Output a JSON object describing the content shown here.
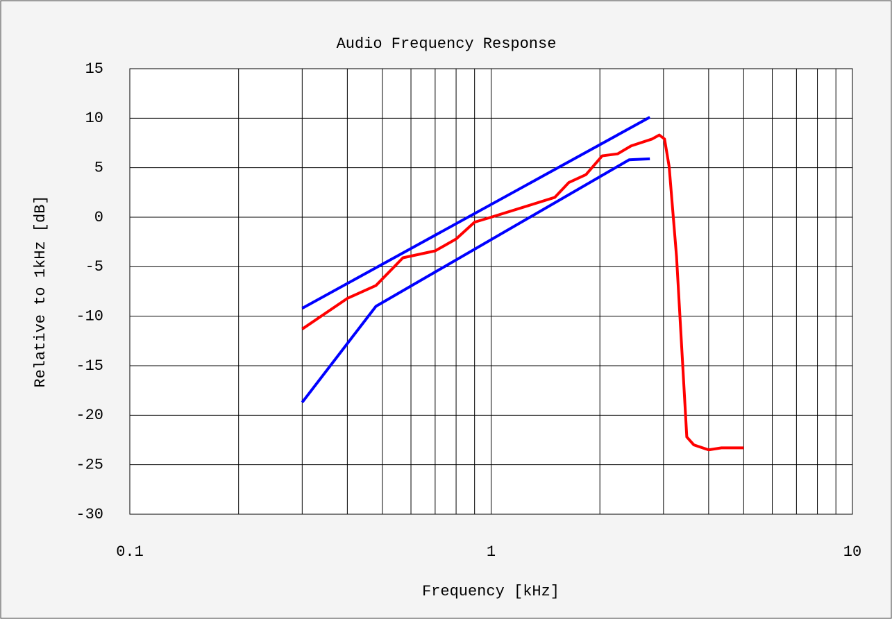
{
  "chart_data": {
    "type": "line",
    "title": "Audio Frequency Response",
    "xlabel": "Frequency [kHz]",
    "ylabel": "Relative to 1kHz [dB]",
    "xscale": "log",
    "xlim": [
      0.1,
      10
    ],
    "xticks": [
      0.1,
      1,
      10
    ],
    "xminor": [
      0.2,
      0.3,
      0.4,
      0.5,
      0.6,
      0.7,
      0.8,
      0.9,
      2,
      3,
      4,
      5,
      6,
      7,
      8,
      9
    ],
    "ylim": [
      -30,
      15
    ],
    "yticks": [
      -30,
      -25,
      -20,
      -15,
      -10,
      -5,
      0,
      5,
      10,
      15
    ],
    "grid": true,
    "series": [
      {
        "color": "#0000ff",
        "x": [
          0.3,
          2.75
        ],
        "values": [
          -9.2,
          10.1
        ]
      },
      {
        "color": "#0000ff",
        "x": [
          0.3,
          0.48,
          2.41,
          2.75
        ],
        "values": [
          -18.7,
          -9,
          5.8,
          5.9
        ]
      },
      {
        "color": "#ff0000",
        "x": [
          0.3,
          0.4,
          0.48,
          0.57,
          0.7,
          0.8,
          0.9,
          1,
          1.5,
          1.64,
          1.83,
          2.03,
          2.24,
          2.44,
          2.79,
          2.92,
          3.02,
          3.11,
          3.26,
          3.48,
          3.64,
          4,
          4.34,
          5
        ],
        "values": [
          -11.3,
          -8.2,
          -6.9,
          -4.1,
          -3.4,
          -2.2,
          -0.5,
          0,
          2,
          3.5,
          4.3,
          6.2,
          6.4,
          7.2,
          7.9,
          8.3,
          7.9,
          5.1,
          -4,
          -22.2,
          -23,
          -23.5,
          -23.3,
          -23.3
        ]
      }
    ]
  }
}
